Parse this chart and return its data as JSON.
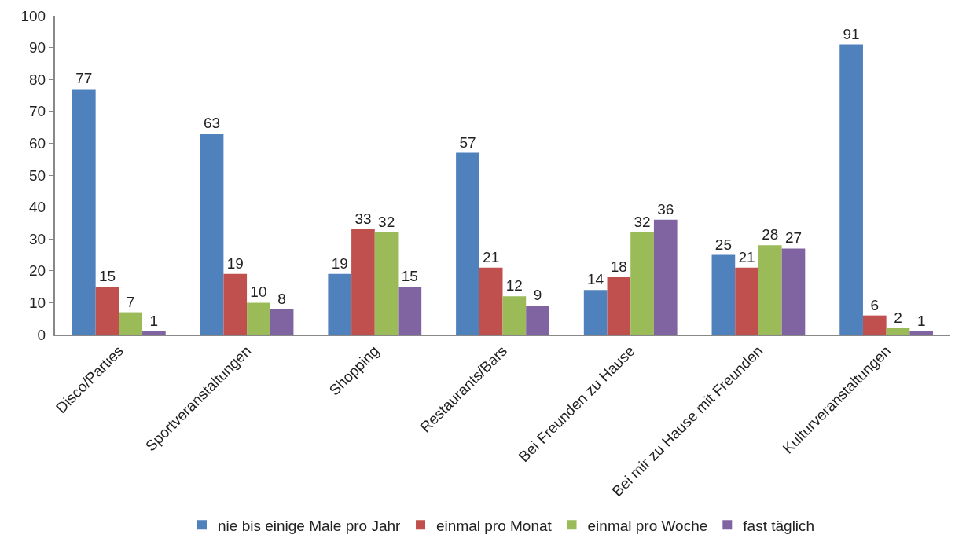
{
  "chart_data": {
    "type": "bar",
    "categories": [
      "Disco/Parties",
      "Sportveranstaltungen",
      "Shopping",
      "Restaurants/Bars",
      "Bei Freunden zu Hause",
      "Bei mir zu Hause mit Freunden",
      "Kulturveranstaltungen"
    ],
    "series": [
      {
        "name": "nie bis einige Male pro Jahr",
        "color": "#4f81bd",
        "values": [
          77,
          63,
          19,
          57,
          14,
          25,
          91
        ]
      },
      {
        "name": "einmal pro Monat",
        "color": "#c0504d",
        "values": [
          15,
          19,
          33,
          21,
          18,
          21,
          6
        ]
      },
      {
        "name": "einmal pro Woche",
        "color": "#9bbb59",
        "values": [
          7,
          10,
          32,
          12,
          32,
          28,
          2
        ]
      },
      {
        "name": "fast täglich",
        "color": "#8064a2",
        "values": [
          1,
          8,
          15,
          9,
          36,
          27,
          1
        ]
      }
    ],
    "ylim": [
      0,
      100
    ],
    "yticks": [
      0,
      10,
      20,
      30,
      40,
      50,
      60,
      70,
      80,
      90,
      100
    ],
    "grid": false,
    "legend": "bottom",
    "data_labels": true
  }
}
